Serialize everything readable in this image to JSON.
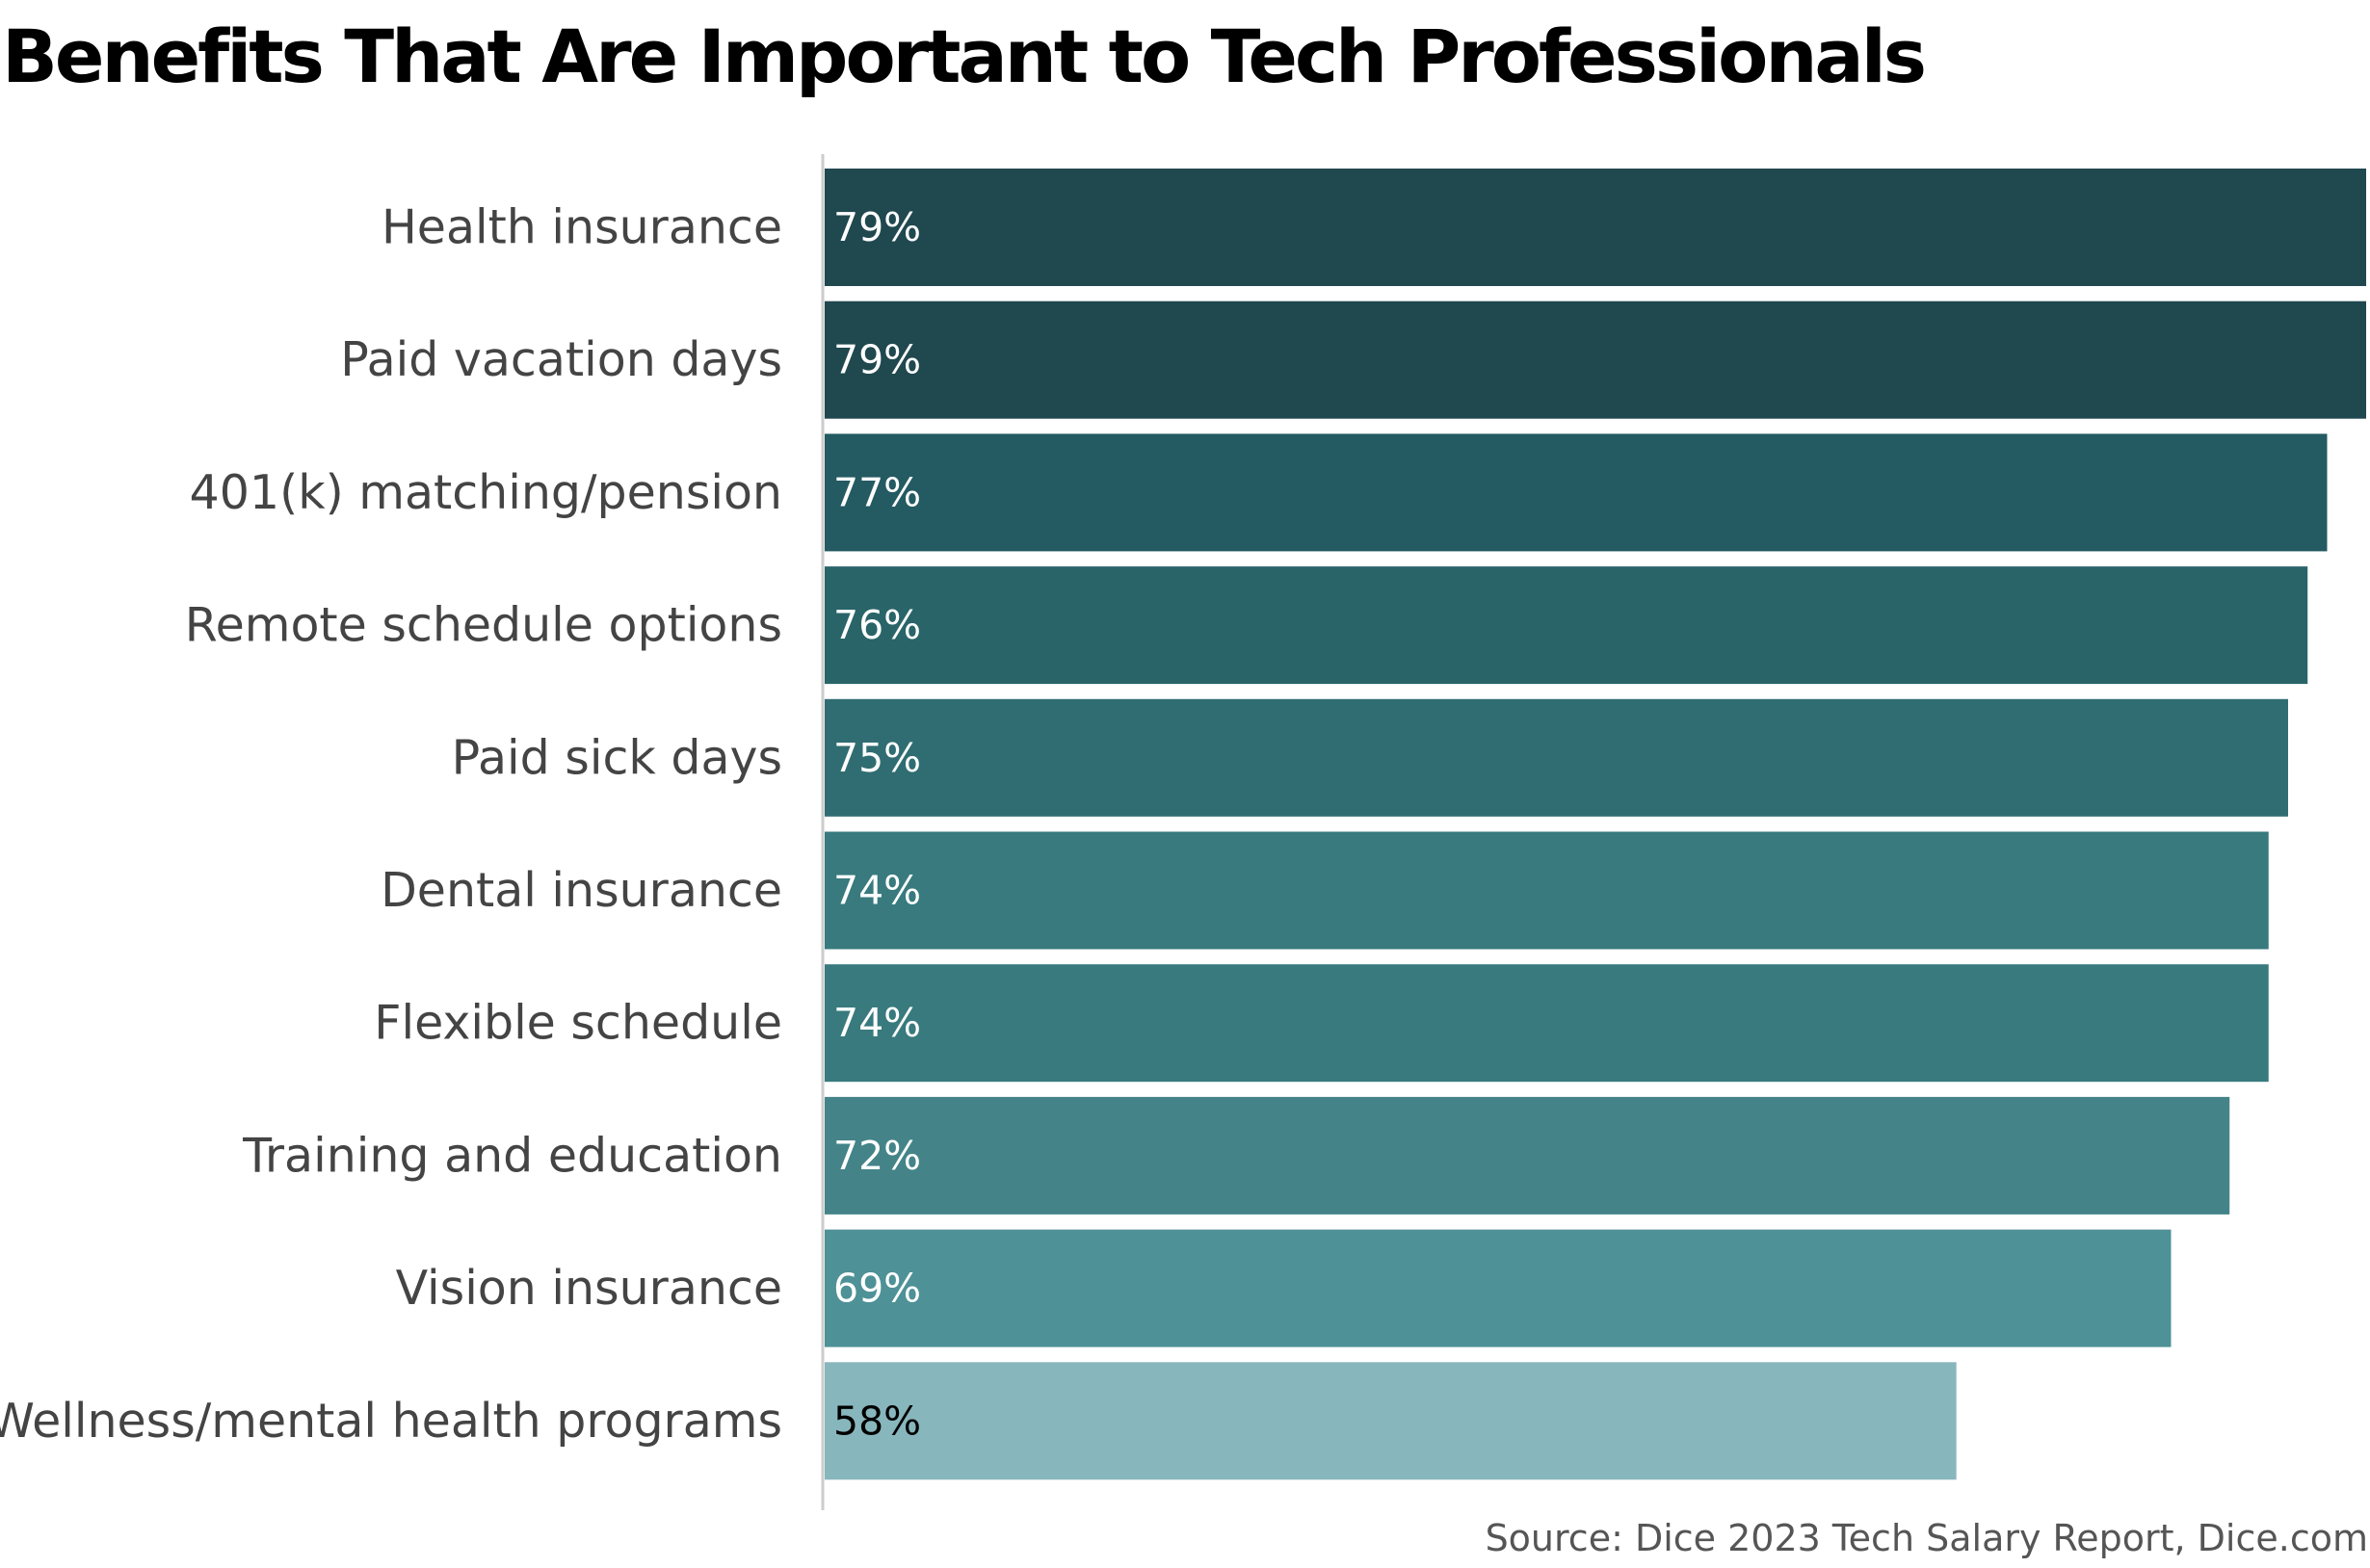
{
  "chart_data": {
    "type": "bar",
    "orientation": "horizontal",
    "title": "Benefits That Are Important to Tech Professionals",
    "categories": [
      "Health insurance",
      "Paid vacation days",
      "401(k) matching/pension",
      "Remote schedule options",
      "Paid sick days",
      "Dental insurance",
      "Flexible schedule",
      "Training and education",
      "Vision insurance",
      "Wellness/mental health programs"
    ],
    "values": [
      79,
      79,
      77,
      76,
      75,
      74,
      74,
      72,
      69,
      58
    ],
    "value_labels": [
      "79%",
      "79%",
      "77%",
      "76%",
      "75%",
      "74%",
      "74%",
      "72%",
      "69%",
      "58%"
    ],
    "xlim": [
      0,
      79
    ],
    "grid": false,
    "legend": "none",
    "colors": [
      "#20484f",
      "#20484f",
      "#245a62",
      "#296469",
      "#306d72",
      "#387a7e",
      "#387a7e",
      "#448489",
      "#4e9197",
      "#88b6bd"
    ],
    "label_colors": [
      "#ffffff",
      "#ffffff",
      "#ffffff",
      "#ffffff",
      "#ffffff",
      "#ffffff",
      "#ffffff",
      "#ffffff",
      "#ffffff",
      "#000000"
    ],
    "axis_color": "#cccccc"
  },
  "source": "Source: Dice 2023 Tech Salary Report, Dice.com"
}
